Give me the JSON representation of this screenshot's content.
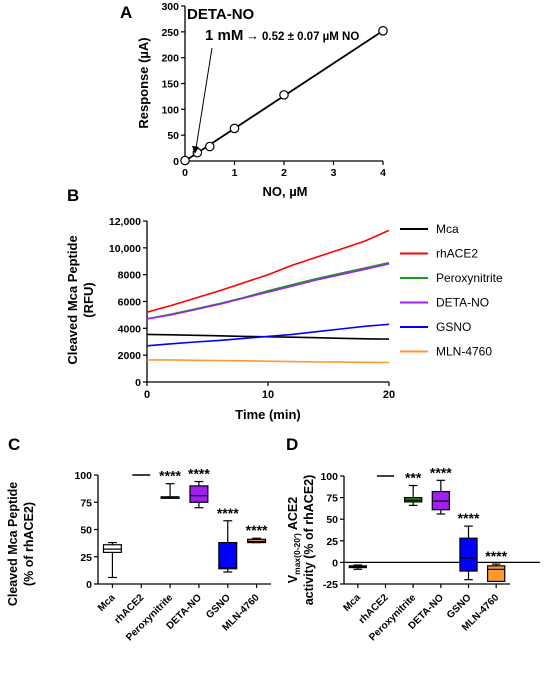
{
  "chart_data": [
    {
      "panel": "A",
      "type": "scatter",
      "annotation_title": "DETA-NO",
      "annotation_main": "1 mM",
      "annotation_result": "0.52 ± 0.07 µM NO",
      "xlabel": "NO, µM",
      "ylabel": "Response (µA)",
      "xlim": [
        0,
        4
      ],
      "ylim": [
        0,
        300
      ],
      "xticks": [
        0,
        1,
        2,
        3,
        4
      ],
      "yticks": [
        0,
        50,
        100,
        150,
        200,
        250,
        300
      ],
      "points": [
        {
          "x": 0,
          "y": 1
        },
        {
          "x": 0.25,
          "y": 16
        },
        {
          "x": 0.5,
          "y": 28
        },
        {
          "x": 1,
          "y": 63
        },
        {
          "x": 2,
          "y": 128
        },
        {
          "x": 4,
          "y": 252
        }
      ],
      "fit_line": {
        "x": [
          0,
          4
        ],
        "y": [
          0,
          252
        ]
      },
      "arrow_target": {
        "x": 0.2,
        "y": 10
      }
    },
    {
      "panel": "B",
      "type": "line",
      "xlabel": "Time (min)",
      "ylabel": "Cleaved Mca Peptide (RFU)",
      "xlim": [
        0,
        20
      ],
      "ylim": [
        0,
        12000
      ],
      "xticks": [
        0,
        10,
        20
      ],
      "yticks": [
        "0",
        "2000",
        "4000",
        "6000",
        "8000",
        "10,000",
        "12,000"
      ],
      "ytick_values": [
        0,
        2000,
        4000,
        6000,
        8000,
        10000,
        12000
      ],
      "x": [
        0,
        2,
        4,
        6,
        8,
        10,
        12,
        14,
        16,
        18,
        20
      ],
      "series": [
        {
          "name": "Mca",
          "color": "#000000",
          "values": [
            3550,
            3520,
            3480,
            3440,
            3400,
            3370,
            3340,
            3300,
            3260,
            3220,
            3200
          ]
        },
        {
          "name": "rhACE2",
          "color": "#ff0000",
          "values": [
            5200,
            5700,
            6250,
            6800,
            7400,
            8000,
            8700,
            9300,
            9900,
            10500,
            11300
          ]
        },
        {
          "name": "Peroxynitrite",
          "color": "#1a9a1a",
          "values": [
            4700,
            5050,
            5450,
            5850,
            6300,
            6800,
            7250,
            7700,
            8100,
            8500,
            8900
          ]
        },
        {
          "name": "DETA-NO",
          "color": "#a020f0",
          "values": [
            4700,
            5000,
            5400,
            5800,
            6250,
            6700,
            7150,
            7600,
            8000,
            8400,
            8800
          ]
        },
        {
          "name": "GSNO",
          "color": "#0000ff",
          "values": [
            2700,
            2850,
            2980,
            3100,
            3250,
            3400,
            3550,
            3750,
            3950,
            4150,
            4300
          ]
        },
        {
          "name": "MLN-4760",
          "color": "#ff9a33",
          "values": [
            1650,
            1650,
            1620,
            1600,
            1580,
            1550,
            1520,
            1500,
            1480,
            1470,
            1450
          ]
        }
      ]
    },
    {
      "panel": "C",
      "type": "box",
      "ylabel": "Cleaved Mca Peptide (% of rhACE2)",
      "ylim": [
        0,
        100
      ],
      "yticks": [
        0,
        25,
        50,
        75,
        100
      ],
      "categories": [
        "Mca",
        "rhACE2",
        "Peroxynitrite",
        "DETA-NO",
        "GSNO",
        "MLN-4760"
      ],
      "boxes": [
        {
          "min": 6,
          "q1": 29,
          "median": 32,
          "q3": 36,
          "max": 38,
          "color": "#ffffff",
          "sig": ""
        },
        {
          "min": 100,
          "q1": 100,
          "median": 100,
          "q3": 100,
          "max": 100,
          "color": "#000000",
          "sig": ""
        },
        {
          "min": 79,
          "q1": 79,
          "median": 79,
          "q3": 80,
          "max": 92,
          "color": "#1a9a1a",
          "sig": "****"
        },
        {
          "min": 70,
          "q1": 75,
          "median": 81,
          "q3": 90,
          "max": 94,
          "color": "#a020f0",
          "sig": "****"
        },
        {
          "min": 11,
          "q1": 14,
          "median": 15,
          "q3": 38,
          "max": 58,
          "color": "#0000ff",
          "sig": "****"
        },
        {
          "min": 38,
          "q1": 38,
          "median": 39,
          "q3": 41,
          "max": 42,
          "color": "#ff9a33",
          "sig": "****"
        }
      ]
    },
    {
      "panel": "D",
      "type": "box",
      "ylabel_line1": "V",
      "ylabel_sub": "max(0-20')",
      "ylabel_line1_rest": " ACE2",
      "ylabel_line2": "activity (% of rhACE2)",
      "ylim": [
        -25,
        100
      ],
      "yticks": [
        -25,
        0,
        25,
        50,
        75,
        100
      ],
      "categories": [
        "Mca",
        "rhACE2",
        "Peroxynitrite",
        "DETA-NO",
        "GSNO",
        "MLN-4760"
      ],
      "boxes": [
        {
          "min": -8,
          "q1": -6,
          "median": -5,
          "q3": -4,
          "max": -3,
          "color": "#ffffff",
          "sig": ""
        },
        {
          "min": 100,
          "q1": 100,
          "median": 100,
          "q3": 100,
          "max": 100,
          "color": "#000000",
          "sig": ""
        },
        {
          "min": 66,
          "q1": 70,
          "median": 72,
          "q3": 75,
          "max": 89,
          "color": "#1a9a1a",
          "sig": "***"
        },
        {
          "min": 56,
          "q1": 61,
          "median": 71,
          "q3": 82,
          "max": 95,
          "color": "#a020f0",
          "sig": "****"
        },
        {
          "min": -20,
          "q1": -10,
          "median": 5,
          "q3": 28,
          "max": 42,
          "color": "#0000ff",
          "sig": "****"
        },
        {
          "min": -22,
          "q1": -22,
          "median": -8,
          "q3": -4,
          "max": -2,
          "color": "#ff9a33",
          "sig": "****"
        }
      ]
    }
  ],
  "panel_labels": {
    "a": "A",
    "b": "B",
    "c": "C",
    "d": "D"
  }
}
